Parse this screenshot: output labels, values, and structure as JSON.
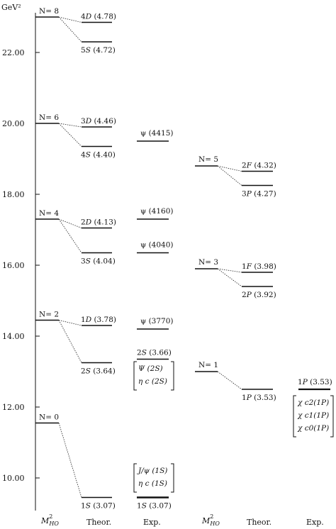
{
  "axis": {
    "unit_label": "GeV²",
    "ticks": [
      "22.00",
      "20.00",
      "18.00",
      "16.00",
      "14.00",
      "12.00",
      "10.00"
    ],
    "tick_values": [
      22,
      20,
      18,
      16,
      14,
      12,
      10
    ],
    "ylim": [
      9.1,
      23.1
    ]
  },
  "columns": {
    "col1": "M²HO",
    "col2": "Theor.",
    "col3": "Exp.",
    "col4": "M²HO",
    "col5": "Theor.",
    "col6": "Exp."
  },
  "ho_levels_left": [
    {
      "label": "N= 8",
      "value": 23.0
    },
    {
      "label": "N= 6",
      "value": 20.0
    },
    {
      "label": "N= 4",
      "value": 17.3
    },
    {
      "label": "N= 2",
      "value": 14.45
    },
    {
      "label": "N= 0",
      "value": 11.55
    }
  ],
  "theor_levels_left": [
    {
      "label": "4D (4.78)",
      "value": 22.85,
      "from": 0
    },
    {
      "label": "5S (4.72)",
      "value": 22.3,
      "from": 0
    },
    {
      "label": "3D (4.46)",
      "value": 19.9,
      "from": 1
    },
    {
      "label": "4S (4.40)",
      "value": 19.35,
      "from": 1
    },
    {
      "label": "2D (4.13)",
      "value": 17.05,
      "from": 2
    },
    {
      "label": "3S (4.04)",
      "value": 16.35,
      "from": 2
    },
    {
      "label": "1D (3.78)",
      "value": 14.3,
      "from": 3
    },
    {
      "label": "2S (3.64)",
      "value": 13.25,
      "from": 3
    },
    {
      "label": "1S (3.07)",
      "value": 9.45,
      "from": 4
    }
  ],
  "exp_levels_left": [
    {
      "label": "ψ (4415)",
      "value": 19.5
    },
    {
      "label": "ψ (4160)",
      "value": 17.3
    },
    {
      "label": "ψ (4040)",
      "value": 16.35
    },
    {
      "label": "ψ (3770)",
      "value": 14.2
    },
    {
      "label": "2S (3.66)",
      "value": 13.35
    },
    {
      "label": "1S (3.07)",
      "value": 9.45
    }
  ],
  "exp_brackets_left": [
    {
      "lines": [
        "Ψ (2S)",
        "η c (2S)"
      ]
    },
    {
      "lines": [
        "J/ψ (1S)",
        "η c (1S)"
      ]
    }
  ],
  "ho_levels_right": [
    {
      "label": "N= 5",
      "value": 18.8
    },
    {
      "label": "N= 3",
      "value": 15.9
    },
    {
      "label": "N= 1",
      "value": 13.0
    }
  ],
  "theor_levels_right": [
    {
      "label": "2F (4.32)",
      "value": 18.65,
      "from": 0
    },
    {
      "label": "3P (4.27)",
      "value": 18.25,
      "from": 0
    },
    {
      "label": "1F (3.98)",
      "value": 15.8,
      "from": 1
    },
    {
      "label": "2P (3.92)",
      "value": 15.4,
      "from": 1
    },
    {
      "label": "1P (3.53)",
      "value": 12.5,
      "from": 2
    }
  ],
  "exp_levels_right": [
    {
      "label": "1P (3.53)",
      "value": 12.5
    }
  ],
  "exp_brackets_right": [
    {
      "lines": [
        "χ c2(1P)",
        "χ c1(1P)",
        "χ c0(1P)"
      ]
    }
  ]
}
